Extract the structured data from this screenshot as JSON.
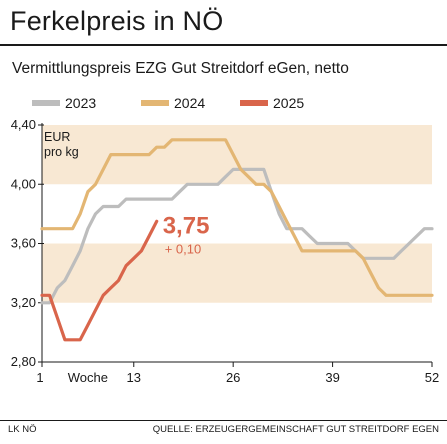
{
  "title": "Ferkelpreis in NÖ",
  "subtitle": "Vermittlungspreis EZG Gut Streitdorf eGen, netto",
  "footer": {
    "left": "LK NÖ",
    "source": "QUELLE: ERZEUGERGEMEINSCHAFT GUT STREITDORF EGEN"
  },
  "chart_data": {
    "type": "line",
    "unit_label": [
      "EUR",
      "pro kg"
    ],
    "xlabel": "Woche",
    "x_ticks": [
      "1",
      "13",
      "26",
      "39",
      "52"
    ],
    "x_tick_values": [
      1,
      13,
      26,
      39,
      52
    ],
    "y_ticks": [
      "2,80",
      "3,20",
      "3,60",
      "4,00",
      "4,40"
    ],
    "y_tick_values": [
      2.8,
      3.2,
      3.6,
      4.0,
      4.4
    ],
    "xlim": [
      1,
      52
    ],
    "ylim": [
      2.8,
      4.4
    ],
    "grid": false,
    "legend_position": "top-left",
    "annotation": {
      "value": "3,75",
      "change": "+ 0,10"
    },
    "series": [
      {
        "name": "2023",
        "color": "#bdbdbd",
        "points": [
          [
            1,
            3.2
          ],
          [
            2,
            3.2
          ],
          [
            3,
            3.3
          ],
          [
            4,
            3.35
          ],
          [
            5,
            3.45
          ],
          [
            6,
            3.55
          ],
          [
            7,
            3.7
          ],
          [
            8,
            3.8
          ],
          [
            9,
            3.85
          ],
          [
            10,
            3.85
          ],
          [
            11,
            3.85
          ],
          [
            12,
            3.9
          ],
          [
            13,
            3.9
          ],
          [
            14,
            3.9
          ],
          [
            15,
            3.9
          ],
          [
            16,
            3.9
          ],
          [
            17,
            3.9
          ],
          [
            18,
            3.9
          ],
          [
            19,
            3.95
          ],
          [
            20,
            4.0
          ],
          [
            21,
            4.0
          ],
          [
            22,
            4.0
          ],
          [
            23,
            4.0
          ],
          [
            24,
            4.0
          ],
          [
            25,
            4.05
          ],
          [
            26,
            4.1
          ],
          [
            27,
            4.1
          ],
          [
            28,
            4.1
          ],
          [
            29,
            4.1
          ],
          [
            30,
            4.1
          ],
          [
            31,
            3.95
          ],
          [
            32,
            3.8
          ],
          [
            33,
            3.7
          ],
          [
            34,
            3.7
          ],
          [
            35,
            3.7
          ],
          [
            36,
            3.65
          ],
          [
            37,
            3.6
          ],
          [
            38,
            3.6
          ],
          [
            39,
            3.6
          ],
          [
            40,
            3.6
          ],
          [
            41,
            3.6
          ],
          [
            42,
            3.55
          ],
          [
            43,
            3.5
          ],
          [
            44,
            3.5
          ],
          [
            45,
            3.5
          ],
          [
            46,
            3.5
          ],
          [
            47,
            3.5
          ],
          [
            48,
            3.55
          ],
          [
            49,
            3.6
          ],
          [
            50,
            3.65
          ],
          [
            51,
            3.7
          ],
          [
            52,
            3.7
          ]
        ]
      },
      {
        "name": "2024",
        "color": "#e3b673",
        "points": [
          [
            1,
            3.7
          ],
          [
            2,
            3.7
          ],
          [
            3,
            3.7
          ],
          [
            4,
            3.7
          ],
          [
            5,
            3.7
          ],
          [
            6,
            3.8
          ],
          [
            7,
            3.95
          ],
          [
            8,
            4.0
          ],
          [
            9,
            4.1
          ],
          [
            10,
            4.2
          ],
          [
            11,
            4.2
          ],
          [
            12,
            4.2
          ],
          [
            13,
            4.2
          ],
          [
            14,
            4.2
          ],
          [
            15,
            4.2
          ],
          [
            16,
            4.25
          ],
          [
            17,
            4.25
          ],
          [
            18,
            4.3
          ],
          [
            19,
            4.3
          ],
          [
            20,
            4.3
          ],
          [
            21,
            4.3
          ],
          [
            22,
            4.3
          ],
          [
            23,
            4.3
          ],
          [
            24,
            4.3
          ],
          [
            25,
            4.3
          ],
          [
            26,
            4.2
          ],
          [
            27,
            4.1
          ],
          [
            28,
            4.05
          ],
          [
            29,
            4.0
          ],
          [
            30,
            4.0
          ],
          [
            31,
            3.95
          ],
          [
            32,
            3.85
          ],
          [
            33,
            3.75
          ],
          [
            34,
            3.65
          ],
          [
            35,
            3.55
          ],
          [
            36,
            3.55
          ],
          [
            37,
            3.55
          ],
          [
            38,
            3.55
          ],
          [
            39,
            3.55
          ],
          [
            40,
            3.55
          ],
          [
            41,
            3.55
          ],
          [
            42,
            3.55
          ],
          [
            43,
            3.5
          ],
          [
            44,
            3.4
          ],
          [
            45,
            3.3
          ],
          [
            46,
            3.25
          ],
          [
            47,
            3.25
          ],
          [
            48,
            3.25
          ],
          [
            49,
            3.25
          ],
          [
            50,
            3.25
          ],
          [
            51,
            3.25
          ],
          [
            52,
            3.25
          ]
        ]
      },
      {
        "name": "2025",
        "color": "#d9654b",
        "points": [
          [
            1,
            3.25
          ],
          [
            2,
            3.25
          ],
          [
            3,
            3.1
          ],
          [
            4,
            2.95
          ],
          [
            5,
            2.95
          ],
          [
            6,
            2.95
          ],
          [
            7,
            3.05
          ],
          [
            8,
            3.15
          ],
          [
            9,
            3.25
          ],
          [
            10,
            3.3
          ],
          [
            11,
            3.35
          ],
          [
            12,
            3.45
          ],
          [
            13,
            3.5
          ],
          [
            14,
            3.55
          ],
          [
            15,
            3.65
          ],
          [
            16,
            3.75
          ]
        ]
      }
    ]
  }
}
